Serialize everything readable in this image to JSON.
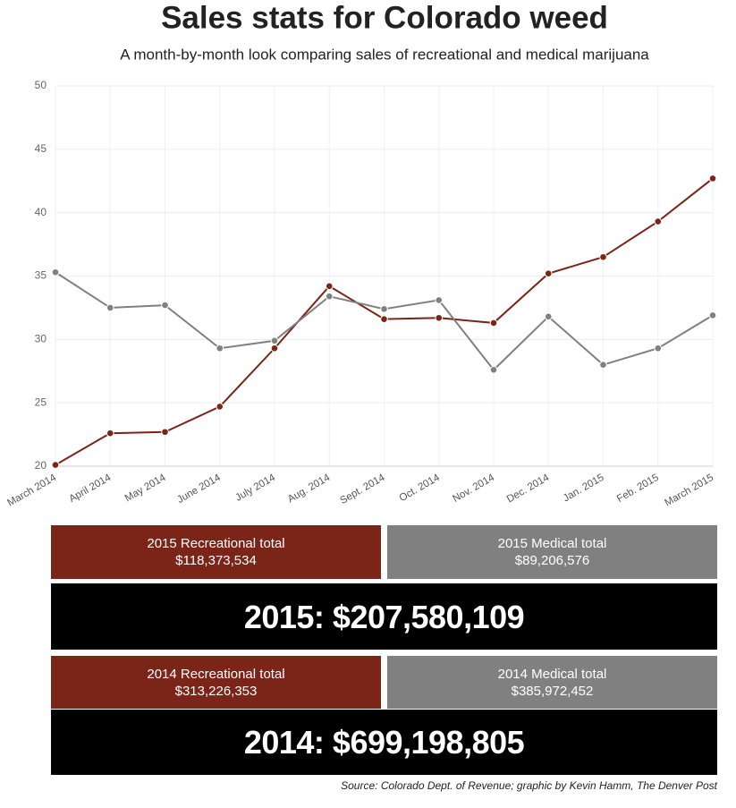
{
  "chart_data": {
    "type": "line",
    "title": "Sales stats for Colorado weed",
    "subtitle": "A month-by-month look comparing sales of recreational and medical marijuana",
    "categories": [
      "March 2014",
      "April 2014",
      "May 2014",
      "June 2014",
      "July 2014",
      "Aug. 2014",
      "Sept. 2014",
      "Oct. 2014",
      "Nov. 2014",
      "Dec. 2014",
      "Jan. 2015",
      "Feb. 2015",
      "March 2015"
    ],
    "series": [
      {
        "color": "#7b2418",
        "values": [
          20.1,
          22.6,
          22.7,
          24.7,
          29.3,
          34.2,
          31.6,
          31.7,
          31.3,
          35.2,
          36.5,
          39.3,
          42.7
        ]
      },
      {
        "color": "#808080",
        "values": [
          35.3,
          32.5,
          32.7,
          29.3,
          29.9,
          33.4,
          32.4,
          33.1,
          27.6,
          31.8,
          28.0,
          29.3,
          31.9
        ]
      }
    ],
    "ylim": [
      20,
      50
    ],
    "yticks": [
      20,
      25,
      30,
      35,
      40,
      45,
      50
    ],
    "grid": true
  },
  "totals": [
    {
      "recreational": {
        "label": "2015 Recreational total",
        "amount": "$118,373,534"
      },
      "medical": {
        "label": "2015 Medical total",
        "amount": "$89,206,576"
      },
      "total": "2015: $207,580,109"
    },
    {
      "recreational": {
        "label": "2014 Recreational total",
        "amount": "$313,226,353"
      },
      "medical": {
        "label": "2014 Medical total",
        "amount": "$385,972,452"
      },
      "total": "2014: $699,198,805"
    }
  ],
  "source": "Source: Colorado Dept. of Revenue; graphic by Kevin Hamm, The Denver Post"
}
